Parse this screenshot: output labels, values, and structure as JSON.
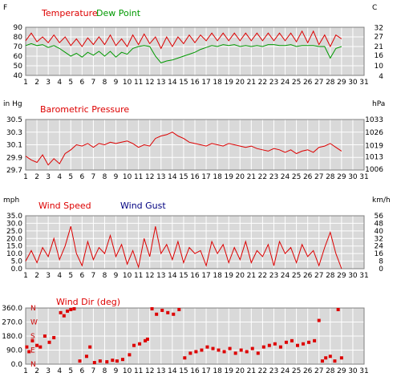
{
  "colors": {
    "panel_bg": "#d9d9d9",
    "grid": "#ffffff",
    "red": "#dd0000",
    "green": "#009900",
    "blue": "#000080"
  },
  "chart_data": [
    {
      "type": "line",
      "legend": [
        "Temperature",
        "Dew Point"
      ],
      "left_unit": "F",
      "right_unit": "C",
      "xlim": [
        1,
        31
      ],
      "x_ticks": [
        1,
        2,
        3,
        4,
        5,
        6,
        7,
        8,
        9,
        10,
        11,
        12,
        13,
        14,
        15,
        16,
        17,
        18,
        19,
        20,
        21,
        22,
        23,
        24,
        25,
        26,
        27,
        28,
        29,
        30,
        31
      ],
      "ylim": [
        40,
        90
      ],
      "y_ticks": [
        40,
        50,
        60,
        70,
        80,
        90
      ],
      "right_ticks": [
        {
          "label": "4",
          "value": 39.2
        },
        {
          "label": "10",
          "value": 50
        },
        {
          "label": "16",
          "value": 60.8
        },
        {
          "label": "21",
          "value": 69.8
        },
        {
          "label": "27",
          "value": 80.6
        },
        {
          "label": "32",
          "value": 89.6
        }
      ],
      "series": [
        {
          "name": "Temperature",
          "color": "#dd0000",
          "x": [
            1.0,
            1.5,
            2.0,
            2.5,
            3.0,
            3.5,
            4.0,
            4.5,
            5.0,
            5.5,
            6.0,
            6.5,
            7.0,
            7.5,
            8.0,
            8.5,
            9.0,
            9.5,
            10.0,
            10.5,
            11.0,
            11.5,
            12.0,
            12.5,
            13.0,
            13.5,
            14.0,
            14.5,
            15.0,
            15.5,
            16.0,
            16.5,
            17.0,
            17.5,
            18.0,
            18.5,
            19.0,
            19.5,
            20.0,
            20.5,
            21.0,
            21.5,
            22.0,
            22.5,
            23.0,
            23.5,
            24.0,
            24.5,
            25.0,
            25.5,
            26.0,
            26.5,
            27.0,
            27.5,
            28.0,
            28.5,
            29.0
          ],
          "y": [
            76,
            84,
            75,
            80,
            74,
            82,
            74,
            80,
            71,
            78,
            70,
            79,
            72,
            80,
            72,
            82,
            71,
            78,
            70,
            82,
            72,
            83,
            73,
            80,
            68,
            80,
            70,
            80,
            73,
            82,
            74,
            82,
            76,
            84,
            76,
            84,
            76,
            84,
            76,
            84,
            76,
            84,
            76,
            84,
            76,
            84,
            76,
            84,
            75,
            86,
            74,
            86,
            72,
            82,
            70,
            82,
            78
          ]
        },
        {
          "name": "Dew Point",
          "color": "#009900",
          "x": [
            1.0,
            1.5,
            2.0,
            2.5,
            3.0,
            3.5,
            4.0,
            4.5,
            5.0,
            5.5,
            6.0,
            6.5,
            7.0,
            7.5,
            8.0,
            8.5,
            9.0,
            9.5,
            10.0,
            10.5,
            11.0,
            11.5,
            12.0,
            12.5,
            13.0,
            13.5,
            14.0,
            14.5,
            15.0,
            15.5,
            16.0,
            16.5,
            17.0,
            17.5,
            18.0,
            18.5,
            19.0,
            19.5,
            20.0,
            20.5,
            21.0,
            21.5,
            22.0,
            22.5,
            23.0,
            23.5,
            24.0,
            24.5,
            25.0,
            25.5,
            26.0,
            26.5,
            27.0,
            27.5,
            28.0,
            28.5,
            29.0
          ],
          "y": [
            71,
            73,
            71,
            72,
            69,
            71,
            68,
            64,
            60,
            63,
            59,
            64,
            61,
            65,
            60,
            65,
            59,
            64,
            62,
            68,
            70,
            71,
            70,
            60,
            53,
            55,
            56,
            58,
            60,
            62,
            64,
            67,
            69,
            71,
            70,
            72,
            71,
            72,
            70,
            71,
            70,
            71,
            70,
            72,
            72,
            71,
            71,
            72,
            70,
            71,
            71,
            71,
            70,
            70,
            58,
            68,
            70
          ]
        }
      ]
    },
    {
      "type": "line",
      "legend": [
        "Barometric Pressure"
      ],
      "left_unit": "in Hg",
      "right_unit": "hPa",
      "xlim": [
        1,
        31
      ],
      "x_ticks": [
        1,
        2,
        3,
        4,
        5,
        6,
        7,
        8,
        9,
        10,
        11,
        12,
        13,
        14,
        15,
        16,
        17,
        18,
        19,
        20,
        21,
        22,
        23,
        24,
        25,
        26,
        27,
        28,
        29,
        30,
        31
      ],
      "ylim": [
        29.7,
        30.5
      ],
      "y_ticks": [
        29.7,
        29.9,
        30.1,
        30.3,
        30.5
      ],
      "y_tick_labels": [
        "29.7",
        "29.9",
        "30.1",
        "30.3",
        "30.5"
      ],
      "right_ticks": [
        {
          "label": "1006",
          "value": 29.71
        },
        {
          "label": "1013",
          "value": 29.91
        },
        {
          "label": "1019",
          "value": 30.09
        },
        {
          "label": "1026",
          "value": 30.3
        },
        {
          "label": "1033",
          "value": 30.5
        }
      ],
      "series": [
        {
          "name": "Barometric Pressure",
          "color": "#dd0000",
          "x": [
            1.0,
            1.5,
            2.0,
            2.5,
            3.0,
            3.5,
            4.0,
            4.5,
            5.0,
            5.5,
            6.0,
            6.5,
            7.0,
            7.5,
            8.0,
            8.5,
            9.0,
            9.5,
            10.0,
            10.5,
            11.0,
            11.5,
            12.0,
            12.5,
            13.0,
            13.5,
            14.0,
            14.5,
            15.0,
            15.5,
            16.0,
            16.5,
            17.0,
            17.5,
            18.0,
            18.5,
            19.0,
            19.5,
            20.0,
            20.5,
            21.0,
            21.5,
            22.0,
            22.5,
            23.0,
            23.5,
            24.0,
            24.5,
            25.0,
            25.5,
            26.0,
            26.5,
            27.0,
            27.5,
            28.0,
            28.5,
            29.0
          ],
          "y": [
            29.92,
            29.86,
            29.82,
            29.94,
            29.78,
            29.88,
            29.8,
            29.96,
            30.02,
            30.1,
            30.08,
            30.12,
            30.06,
            30.12,
            30.1,
            30.14,
            30.12,
            30.14,
            30.16,
            30.12,
            30.06,
            30.1,
            30.08,
            30.2,
            30.24,
            30.26,
            30.3,
            30.24,
            30.2,
            30.14,
            30.12,
            30.1,
            30.08,
            30.12,
            30.1,
            30.08,
            30.12,
            30.1,
            30.08,
            30.06,
            30.08,
            30.04,
            30.02,
            30.0,
            30.04,
            30.02,
            29.98,
            30.02,
            29.96,
            30.0,
            30.02,
            29.98,
            30.06,
            30.08,
            30.12,
            30.06,
            30.0
          ]
        }
      ]
    },
    {
      "type": "line",
      "legend": [
        "Wind Speed",
        "Wind Gust"
      ],
      "left_unit": "mph",
      "right_unit": "km/h",
      "xlim": [
        1,
        31
      ],
      "x_ticks": [
        1,
        2,
        3,
        4,
        5,
        6,
        7,
        8,
        9,
        10,
        11,
        12,
        13,
        14,
        15,
        16,
        17,
        18,
        19,
        20,
        21,
        22,
        23,
        24,
        25,
        26,
        27,
        28,
        29,
        30,
        31
      ],
      "ylim": [
        0,
        35
      ],
      "y_ticks": [
        0,
        5,
        10,
        15,
        20,
        25,
        30,
        35
      ],
      "y_tick_labels": [
        "0.0",
        "5.0",
        "10.0",
        "15.0",
        "20.0",
        "25.0",
        "30.0",
        "35.0"
      ],
      "right_ticks": [
        {
          "label": "0",
          "value": 0
        },
        {
          "label": "8",
          "value": 5
        },
        {
          "label": "16",
          "value": 10
        },
        {
          "label": "24",
          "value": 15
        },
        {
          "label": "32",
          "value": 20
        },
        {
          "label": "40",
          "value": 25
        },
        {
          "label": "48",
          "value": 30
        },
        {
          "label": "56",
          "value": 35
        }
      ],
      "series": [
        {
          "name": "Wind Speed",
          "color": "#dd0000",
          "x": [
            1.0,
            1.5,
            2.0,
            2.5,
            3.0,
            3.5,
            4.0,
            4.5,
            5.0,
            5.5,
            6.0,
            6.5,
            7.0,
            7.5,
            8.0,
            8.5,
            9.0,
            9.5,
            10.0,
            10.5,
            11.0,
            11.5,
            12.0,
            12.5,
            13.0,
            13.5,
            14.0,
            14.5,
            15.0,
            15.5,
            16.0,
            16.5,
            17.0,
            17.5,
            18.0,
            18.5,
            19.0,
            19.5,
            20.0,
            20.5,
            21.0,
            21.5,
            22.0,
            22.5,
            23.0,
            23.5,
            24.0,
            24.5,
            25.0,
            25.5,
            26.0,
            26.5,
            27.0,
            27.5,
            28.0,
            28.5,
            29.0
          ],
          "y": [
            5,
            12,
            4,
            14,
            8,
            20,
            6,
            15,
            28,
            10,
            2,
            18,
            6,
            14,
            10,
            22,
            8,
            16,
            3,
            12,
            1,
            20,
            8,
            28,
            10,
            16,
            6,
            18,
            4,
            14,
            10,
            12,
            2,
            18,
            10,
            16,
            4,
            14,
            6,
            18,
            4,
            12,
            8,
            16,
            2,
            18,
            10,
            14,
            4,
            16,
            8,
            12,
            2,
            14,
            24,
            10,
            0
          ]
        },
        {
          "name": "Wind Gust",
          "color": "#000080",
          "x": [],
          "y": []
        }
      ]
    },
    {
      "type": "scatter",
      "legend": [
        "Wind Dir (deg)"
      ],
      "xlim": [
        1,
        31
      ],
      "x_ticks": [
        1,
        2,
        3,
        4,
        5,
        6,
        7,
        8,
        9,
        10,
        11,
        12,
        13,
        14,
        15,
        16,
        17,
        18,
        19,
        20,
        21,
        22,
        23,
        24,
        25,
        26,
        27,
        28,
        29,
        30,
        31
      ],
      "ylim": [
        0,
        360
      ],
      "y_ticks": [
        0,
        90,
        180,
        270,
        360
      ],
      "y_tick_labels": [
        "0.0",
        "90.0",
        "180.0",
        "270.0",
        "360.0"
      ],
      "compass_labels": [
        {
          "label": "N",
          "value": 360
        },
        {
          "label": "W",
          "value": 270
        },
        {
          "label": "S",
          "value": 180
        },
        {
          "label": "E",
          "value": 90
        },
        {
          "label": "N",
          "value": 0
        }
      ],
      "series": [
        {
          "name": "Wind Dir",
          "color": "#dd0000",
          "x": [
            1.1,
            1.3,
            1.6,
            2.0,
            2.3,
            2.7,
            3.1,
            3.5,
            4.1,
            4.4,
            4.7,
            5.0,
            5.3,
            5.8,
            6.4,
            6.7,
            7.1,
            7.6,
            8.2,
            8.7,
            9.1,
            9.6,
            10.2,
            10.6,
            11.1,
            11.6,
            11.8,
            12.2,
            12.6,
            13.1,
            13.6,
            14.1,
            14.6,
            15.1,
            15.6,
            16.1,
            16.6,
            17.1,
            17.6,
            18.1,
            18.6,
            19.1,
            19.6,
            20.1,
            20.6,
            21.1,
            21.6,
            22.1,
            22.6,
            23.1,
            23.6,
            24.1,
            24.6,
            25.1,
            25.6,
            26.1,
            26.6,
            27.0,
            27.3,
            27.6,
            28.0,
            28.4,
            28.7,
            29.0
          ],
          "y": [
            110,
            80,
            150,
            120,
            110,
            180,
            140,
            170,
            330,
            310,
            340,
            350,
            355,
            20,
            50,
            110,
            10,
            20,
            15,
            25,
            20,
            30,
            60,
            120,
            130,
            150,
            160,
            355,
            320,
            345,
            330,
            320,
            350,
            40,
            70,
            80,
            90,
            110,
            100,
            90,
            80,
            100,
            70,
            90,
            80,
            100,
            70,
            110,
            120,
            130,
            110,
            140,
            150,
            120,
            130,
            140,
            150,
            280,
            20,
            40,
            50,
            20,
            350,
            40
          ]
        }
      ]
    }
  ]
}
